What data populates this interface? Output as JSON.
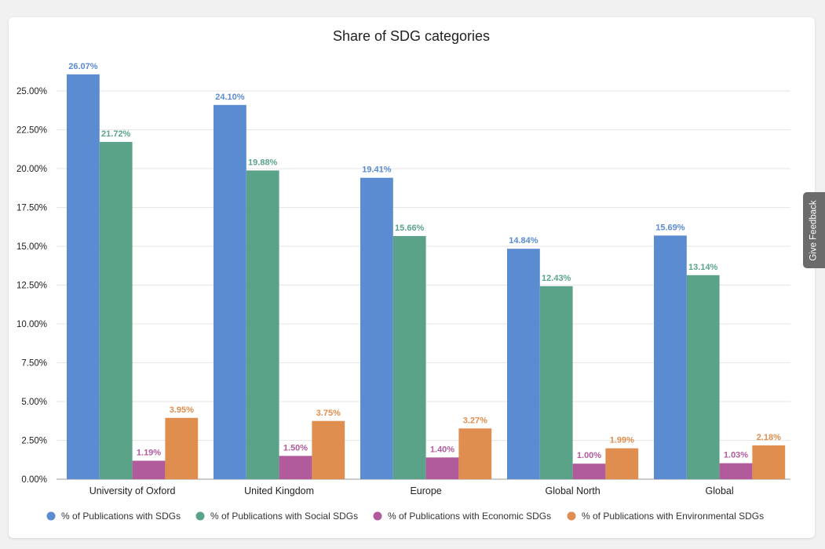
{
  "feedback_label": "Give Feedback",
  "chart_data": {
    "type": "bar",
    "title": "Share of SDG categories",
    "xlabel": "",
    "ylabel": "",
    "ylim": [
      0,
      25
    ],
    "yticks": [
      "0.00%",
      "2.50%",
      "5.00%",
      "7.50%",
      "10.00%",
      "12.50%",
      "15.00%",
      "17.50%",
      "20.00%",
      "22.50%",
      "25.00%"
    ],
    "grid": true,
    "legend_position": "bottom",
    "categories": [
      "University of Oxford",
      "United Kingdom",
      "Europe",
      "Global North",
      "Global"
    ],
    "series": [
      {
        "name": "% of Publications with SDGs",
        "color": "#5b8bd1",
        "values": [
          26.07,
          24.1,
          19.41,
          14.84,
          15.69
        ],
        "labels": [
          "26.07%",
          "24.10%",
          "19.41%",
          "14.84%",
          "15.69%"
        ]
      },
      {
        "name": "% of Publications with Social SDGs",
        "color": "#5aa389",
        "values": [
          21.72,
          19.88,
          15.66,
          12.43,
          13.14
        ],
        "labels": [
          "21.72%",
          "19.88%",
          "15.66%",
          "12.43%",
          "13.14%"
        ]
      },
      {
        "name": "% of Publications with Economic SDGs",
        "color": "#b15b9d",
        "values": [
          1.19,
          1.5,
          1.4,
          1.0,
          1.03
        ],
        "labels": [
          "1.19%",
          "1.50%",
          "1.40%",
          "1.00%",
          "1.03%"
        ]
      },
      {
        "name": "% of Publications with Environmental SDGs",
        "color": "#e08e4f",
        "values": [
          3.95,
          3.75,
          3.27,
          1.99,
          2.18
        ],
        "labels": [
          "3.95%",
          "3.75%",
          "3.27%",
          "1.99%",
          "2.18%"
        ]
      }
    ]
  }
}
